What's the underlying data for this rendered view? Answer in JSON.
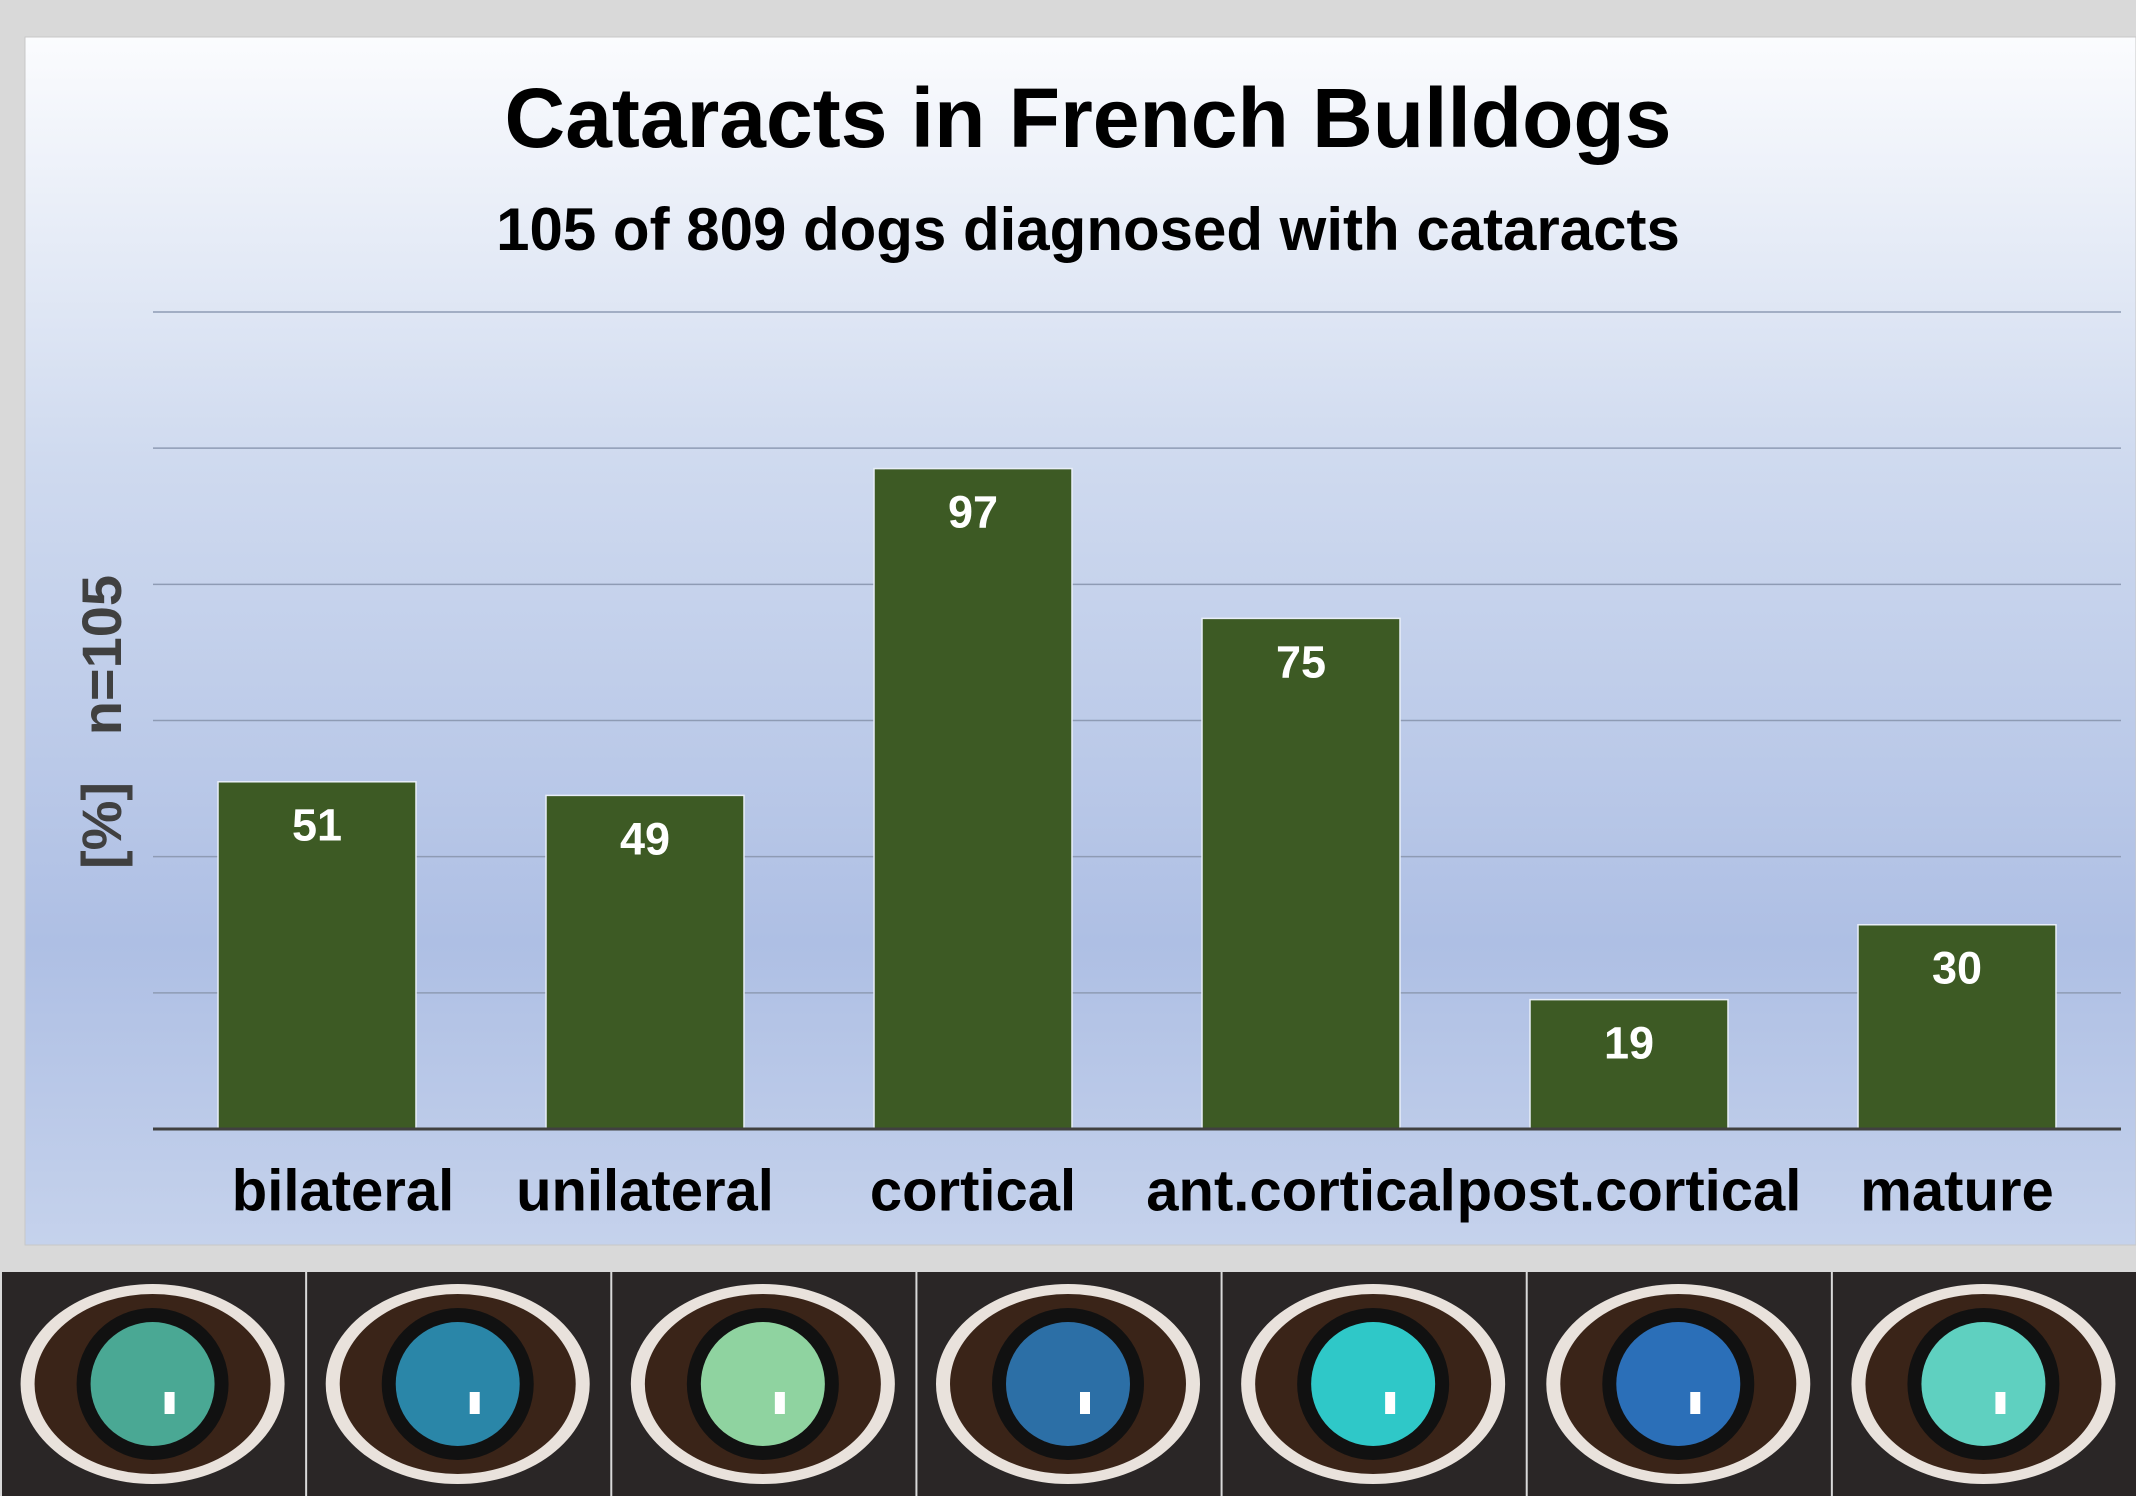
{
  "chart_data": {
    "type": "bar",
    "title": "Cataracts in French Bulldogs",
    "subtitle": "105 of 809 dogs diagnosed with cataracts",
    "y_label": "[%]   n=105",
    "categories": [
      "bilateral",
      "unilateral",
      "cortical",
      "ant.cortical",
      "post.cortical",
      "mature"
    ],
    "values": [
      51,
      49,
      97,
      75,
      19,
      30
    ],
    "color": "#3d5a24",
    "ylim": [
      0,
      120
    ],
    "yticks": [
      0,
      20,
      40,
      60,
      80,
      100,
      120
    ],
    "tick_labels": false,
    "grid": true
  }
}
